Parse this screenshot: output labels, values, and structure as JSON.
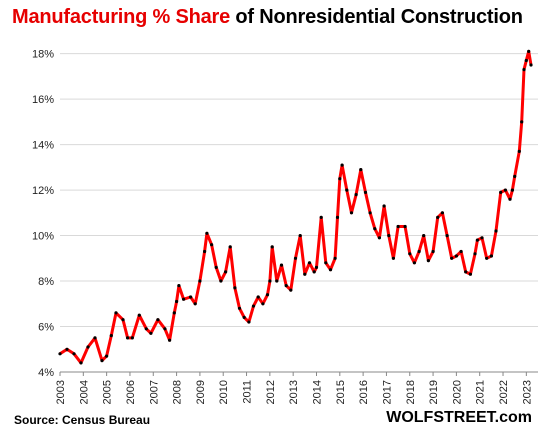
{
  "title": {
    "part1": "Manufacturing  % Share",
    "part2": " of Nonresidential  Construction",
    "part1_color": "#e60000",
    "part2_color": "#000000"
  },
  "footer": {
    "source": "Source: Census Bureau",
    "brand": "WOLFSTREET.com"
  },
  "chart_data": {
    "type": "line",
    "title": "Manufacturing  % Share of Nonresidential  Construction",
    "xlabel": "",
    "ylabel": "",
    "ylim": [
      4,
      18.6
    ],
    "yticks": [
      "4%",
      "6%",
      "8%",
      "10%",
      "12%",
      "14%",
      "16%",
      "18%"
    ],
    "ytick_values": [
      4,
      6,
      8,
      10,
      12,
      14,
      16,
      18
    ],
    "xticks": [
      "2003",
      "2004",
      "2005",
      "2006",
      "2007",
      "2008",
      "2009",
      "2010",
      "2011",
      "2012",
      "2013",
      "2014",
      "2015",
      "2016",
      "2017",
      "2018",
      "2019",
      "2020",
      "2021",
      "2022",
      "2023"
    ],
    "xtick_values": [
      2003,
      2004,
      2005,
      2006,
      2007,
      2008,
      2009,
      2010,
      2011,
      2012,
      2013,
      2014,
      2015,
      2016,
      2017,
      2018,
      2019,
      2020,
      2021,
      2022,
      2023
    ],
    "xlim": [
      2003,
      2023.5
    ],
    "grid": true,
    "line_color": "#ff0000",
    "marker_color": "#000000",
    "series": [
      {
        "points": [
          [
            2003.0,
            4.8
          ],
          [
            2003.3,
            5.0
          ],
          [
            2003.6,
            4.8
          ],
          [
            2003.9,
            4.4
          ],
          [
            2004.2,
            5.1
          ],
          [
            2004.5,
            5.5
          ],
          [
            2004.8,
            4.5
          ],
          [
            2005.0,
            4.7
          ],
          [
            2005.2,
            5.6
          ],
          [
            2005.4,
            6.6
          ],
          [
            2005.7,
            6.3
          ],
          [
            2005.9,
            5.5
          ],
          [
            2006.1,
            5.5
          ],
          [
            2006.4,
            6.5
          ],
          [
            2006.7,
            5.9
          ],
          [
            2006.9,
            5.7
          ],
          [
            2007.2,
            6.3
          ],
          [
            2007.5,
            5.9
          ],
          [
            2007.7,
            5.4
          ],
          [
            2007.9,
            6.6
          ],
          [
            2008.0,
            7.1
          ],
          [
            2008.1,
            7.8
          ],
          [
            2008.3,
            7.2
          ],
          [
            2008.6,
            7.3
          ],
          [
            2008.8,
            7.0
          ],
          [
            2009.0,
            8.0
          ],
          [
            2009.2,
            9.3
          ],
          [
            2009.3,
            10.1
          ],
          [
            2009.5,
            9.6
          ],
          [
            2009.7,
            8.6
          ],
          [
            2009.9,
            8.0
          ],
          [
            2010.1,
            8.4
          ],
          [
            2010.3,
            9.5
          ],
          [
            2010.5,
            7.7
          ],
          [
            2010.7,
            6.8
          ],
          [
            2010.9,
            6.4
          ],
          [
            2011.1,
            6.2
          ],
          [
            2011.3,
            6.9
          ],
          [
            2011.5,
            7.3
          ],
          [
            2011.7,
            7.0
          ],
          [
            2011.9,
            7.4
          ],
          [
            2012.0,
            8.0
          ],
          [
            2012.1,
            9.5
          ],
          [
            2012.3,
            8.0
          ],
          [
            2012.5,
            8.7
          ],
          [
            2012.7,
            7.8
          ],
          [
            2012.9,
            7.6
          ],
          [
            2013.1,
            9.0
          ],
          [
            2013.3,
            10.0
          ],
          [
            2013.5,
            8.3
          ],
          [
            2013.7,
            8.8
          ],
          [
            2013.9,
            8.4
          ],
          [
            2014.0,
            8.6
          ],
          [
            2014.2,
            10.8
          ],
          [
            2014.4,
            8.8
          ],
          [
            2014.6,
            8.5
          ],
          [
            2014.8,
            9.0
          ],
          [
            2014.9,
            10.8
          ],
          [
            2015.0,
            12.5
          ],
          [
            2015.1,
            13.1
          ],
          [
            2015.3,
            12.0
          ],
          [
            2015.5,
            11.0
          ],
          [
            2015.7,
            11.8
          ],
          [
            2015.9,
            12.9
          ],
          [
            2016.1,
            11.9
          ],
          [
            2016.3,
            11.0
          ],
          [
            2016.5,
            10.3
          ],
          [
            2016.7,
            9.9
          ],
          [
            2016.9,
            11.3
          ],
          [
            2017.1,
            10.0
          ],
          [
            2017.3,
            9.0
          ],
          [
            2017.5,
            10.4
          ],
          [
            2017.8,
            10.4
          ],
          [
            2018.0,
            9.2
          ],
          [
            2018.2,
            8.8
          ],
          [
            2018.4,
            9.3
          ],
          [
            2018.6,
            10.0
          ],
          [
            2018.8,
            8.9
          ],
          [
            2019.0,
            9.3
          ],
          [
            2019.2,
            10.8
          ],
          [
            2019.4,
            11.0
          ],
          [
            2019.6,
            10.0
          ],
          [
            2019.8,
            9.0
          ],
          [
            2020.0,
            9.1
          ],
          [
            2020.2,
            9.3
          ],
          [
            2020.4,
            8.4
          ],
          [
            2020.6,
            8.3
          ],
          [
            2020.8,
            9.2
          ],
          [
            2020.9,
            9.8
          ],
          [
            2021.1,
            9.9
          ],
          [
            2021.3,
            9.0
          ],
          [
            2021.5,
            9.1
          ],
          [
            2021.7,
            10.2
          ],
          [
            2021.9,
            11.9
          ],
          [
            2022.1,
            12.0
          ],
          [
            2022.3,
            11.6
          ],
          [
            2022.4,
            12.0
          ],
          [
            2022.5,
            12.6
          ],
          [
            2022.7,
            13.7
          ],
          [
            2022.8,
            15.0
          ],
          [
            2022.9,
            17.3
          ],
          [
            2023.0,
            17.7
          ],
          [
            2023.1,
            18.1
          ],
          [
            2023.2,
            17.5
          ]
        ]
      }
    ]
  }
}
